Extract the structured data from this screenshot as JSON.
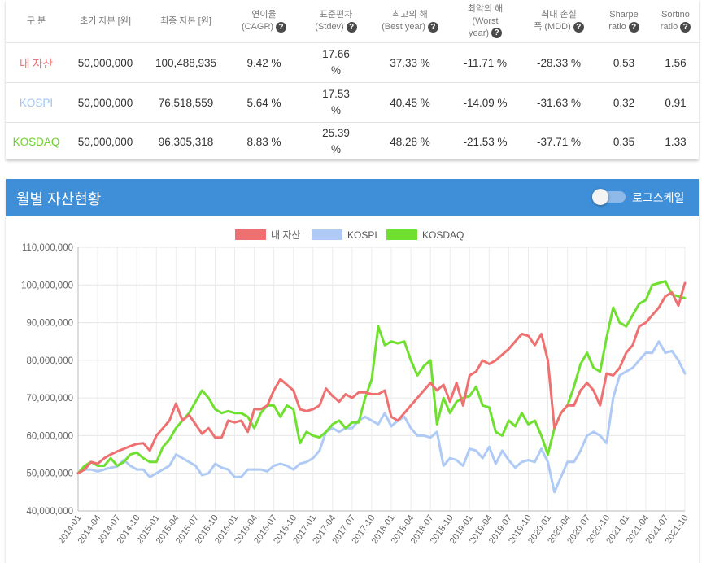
{
  "table": {
    "headers": [
      {
        "l1": "구 분",
        "l2": "",
        "q": false
      },
      {
        "l1": "초기 자본 [원]",
        "l2": "",
        "q": false
      },
      {
        "l1": "최종 자본 [원]",
        "l2": "",
        "q": false
      },
      {
        "l1": "연이율",
        "l2": "(CAGR)",
        "q": true
      },
      {
        "l1": "표준편차",
        "l2": "(Stdev)",
        "q": true
      },
      {
        "l1": "최고의 해",
        "l2": "(Best year)",
        "q": true
      },
      {
        "l1": "최악의 해",
        "l2": "(Worst",
        "l3": "year)",
        "q": true
      },
      {
        "l1": "최대 손실",
        "l2": "폭 (MDD)",
        "q": true
      },
      {
        "l1": "Sharpe",
        "l2": "ratio",
        "q": true
      },
      {
        "l1": "Sortino",
        "l2": "ratio",
        "q": true
      }
    ],
    "rows": [
      {
        "name": "내 자산",
        "color": "#ef7070",
        "initial": "50,000,000",
        "final": "100,488,935",
        "cagr": "9.42 %",
        "stdev": "17.66 %",
        "best": "37.33 %",
        "worst": "-11.71 %",
        "mdd": "-28.33 %",
        "sharpe": "0.53",
        "sortino": "1.56"
      },
      {
        "name": "KOSPI",
        "color": "#9ec4f2",
        "initial": "50,000,000",
        "final": "76,518,559",
        "cagr": "5.64 %",
        "stdev": "17.53 %",
        "best": "40.45 %",
        "worst": "-14.09 %",
        "mdd": "-31.63 %",
        "sharpe": "0.32",
        "sortino": "0.91"
      },
      {
        "name": "KOSDAQ",
        "color": "#6ed42a",
        "initial": "50,000,000",
        "final": "96,305,318",
        "cagr": "8.83 %",
        "stdev": "25.39 %",
        "best": "48.28 %",
        "worst": "-21.53 %",
        "mdd": "-37.71 %",
        "sharpe": "0.35",
        "sortino": "1.33"
      }
    ]
  },
  "panel": {
    "title": "월별 자산현황",
    "toggle_label": "로그스케일",
    "toggle_on": false,
    "accent": "#3f8fd8"
  },
  "chart_data": {
    "type": "line",
    "title": "",
    "ylim": [
      40000000,
      110000000
    ],
    "yticks": [
      "40,000,000",
      "50,000,000",
      "60,000,000",
      "70,000,000",
      "80,000,000",
      "90,000,000",
      "100,000,000",
      "110,000,000"
    ],
    "x_start": "2014-01",
    "months": 94,
    "xtick_step": 3,
    "legend": "top",
    "series": [
      {
        "name": "내 자산",
        "color": "#ef7070",
        "values": [
          50.0,
          51.0,
          53.0,
          52.5,
          54.0,
          55.0,
          55.8,
          56.5,
          57.2,
          57.8,
          58.0,
          56.0,
          60.0,
          62.0,
          64.0,
          68.5,
          64.0,
          65.5,
          63.0,
          60.5,
          62.0,
          59.5,
          59.5,
          64.0,
          63.5,
          64.0,
          61.0,
          67.0,
          67.0,
          68.0,
          72.0,
          75.0,
          73.5,
          72.0,
          67.0,
          66.5,
          67.0,
          68.0,
          72.5,
          70.5,
          69.0,
          71.0,
          70.0,
          71.5,
          71.5,
          71.0,
          71.0,
          72.0,
          65.0,
          64.0,
          66.0,
          68.0,
          70.0,
          72.0,
          74.0,
          72.0,
          73.5,
          69.0,
          74.0,
          68.0,
          76.0,
          77.0,
          80.0,
          79.0,
          80.0,
          81.5,
          83.0,
          85.0,
          87.0,
          86.5,
          84.0,
          87.0,
          80.0,
          62.0,
          66.0,
          68.0,
          68.0,
          72.0,
          74.0,
          72.0,
          68.0,
          76.5,
          76.0,
          78.0,
          82.0,
          84.0,
          89.0,
          90.0,
          92.0,
          94.0,
          97.0,
          98.0,
          94.5,
          100.5
        ]
      },
      {
        "name": "KOSPI",
        "color": "#aecaf5",
        "values": [
          50.0,
          51.0,
          51.0,
          50.5,
          51.0,
          51.5,
          51.8,
          53.5,
          52.0,
          51.0,
          51.0,
          49.0,
          50.0,
          51.0,
          52.0,
          55.0,
          54.0,
          53.0,
          52.0,
          49.5,
          50.0,
          52.5,
          51.5,
          51.0,
          49.0,
          49.0,
          51.0,
          51.0,
          51.0,
          50.5,
          52.0,
          52.5,
          52.0,
          51.0,
          52.5,
          53.0,
          54.0,
          56.0,
          61.0,
          62.0,
          61.0,
          62.0,
          62.0,
          64.0,
          65.0,
          64.0,
          63.0,
          66.0,
          62.5,
          64.0,
          65.0,
          62.0,
          60.0,
          60.0,
          59.5,
          61.0,
          52.0,
          54.0,
          53.5,
          52.0,
          56.5,
          56.0,
          54.0,
          57.0,
          52.5,
          56.0,
          53.5,
          51.5,
          53.0,
          53.5,
          53.0,
          56.5,
          53.0,
          45.0,
          49.0,
          53.0,
          53.0,
          56.0,
          60.0,
          61.0,
          60.0,
          58.0,
          70.0,
          76.0,
          77.0,
          78.0,
          80.0,
          82.0,
          82.0,
          85.0,
          82.0,
          82.5,
          80.0,
          76.5
        ]
      },
      {
        "name": "KOSDAQ",
        "color": "#70e030",
        "values": [
          50.0,
          52.0,
          53.0,
          52.0,
          52.0,
          54.0,
          52.0,
          53.0,
          55.0,
          55.5,
          54.0,
          53.0,
          53.0,
          57.0,
          59.0,
          62.0,
          64.0,
          66.0,
          69.0,
          72.0,
          70.0,
          67.0,
          66.0,
          66.5,
          66.0,
          66.0,
          65.0,
          62.0,
          66.0,
          68.0,
          68.0,
          65.0,
          68.0,
          67.0,
          58.0,
          61.0,
          60.0,
          59.5,
          61.0,
          63.0,
          64.0,
          62.0,
          63.5,
          63.5,
          70.0,
          75.0,
          89.0,
          84.0,
          85.0,
          84.5,
          85.0,
          80.0,
          76.0,
          78.5,
          80.0,
          63.0,
          70.0,
          66.0,
          69.0,
          70.0,
          70.5,
          73.0,
          68.0,
          67.5,
          61.0,
          60.0,
          64.0,
          62.5,
          66.0,
          63.0,
          64.0,
          60.0,
          55.0,
          62.0,
          66.0,
          68.0,
          73.0,
          79.0,
          82.0,
          78.0,
          77.0,
          86.0,
          94.0,
          90.0,
          89.0,
          92.0,
          95.0,
          96.0,
          100.0,
          100.5,
          101.0,
          97.5,
          97.0,
          96.5
        ]
      }
    ]
  }
}
